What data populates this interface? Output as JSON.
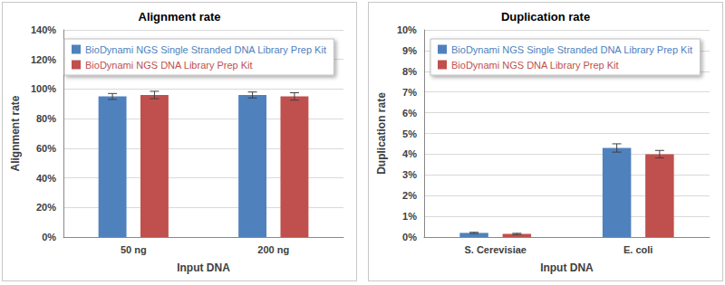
{
  "chart_data": [
    {
      "type": "bar",
      "title": "Alignment rate",
      "x_label": "Input DNA",
      "y_label": "Alignment rate",
      "categories": [
        "50 ng",
        "200 ng"
      ],
      "series": [
        {
          "name": "BioDynami NGS Single Stranded DNA Library Prep Kit",
          "color": "#4f81bd",
          "values": [
            95,
            96
          ],
          "errors": [
            2,
            2
          ]
        },
        {
          "name": "BioDynami NGS DNA Library Prep Kit",
          "color": "#c0504d",
          "values": [
            96,
            95
          ],
          "errors": [
            2.5,
            2.5
          ]
        }
      ],
      "ylim": [
        0,
        140
      ],
      "yticks": [
        {
          "value": 0,
          "label": "0%"
        },
        {
          "value": 20,
          "label": "20%"
        },
        {
          "value": 40,
          "label": "40%"
        },
        {
          "value": 60,
          "label": "60%"
        },
        {
          "value": 80,
          "label": "80%"
        },
        {
          "value": 100,
          "label": "100%"
        },
        {
          "value": 120,
          "label": "120%"
        },
        {
          "value": 140,
          "label": "140%"
        }
      ],
      "grid": true,
      "legend": "upper left"
    },
    {
      "type": "bar",
      "title": "Duplication rate",
      "x_label": "Input DNA",
      "y_label": "Duplication rate",
      "categories": [
        "S. Cerevisiae",
        "E. coli"
      ],
      "series": [
        {
          "name": "BioDynami NGS Single Stranded DNA Library Prep Kit",
          "color": "#4f81bd",
          "values": [
            0.2,
            4.3
          ],
          "errors": [
            0.03,
            0.2
          ]
        },
        {
          "name": "BioDynami NGS DNA Library Prep Kit",
          "color": "#c0504d",
          "values": [
            0.15,
            4.0
          ],
          "errors": [
            0.03,
            0.18
          ]
        }
      ],
      "ylim": [
        0,
        10
      ],
      "yticks": [
        {
          "value": 0,
          "label": "0%"
        },
        {
          "value": 1,
          "label": "1%"
        },
        {
          "value": 2,
          "label": "2%"
        },
        {
          "value": 3,
          "label": "3%"
        },
        {
          "value": 4,
          "label": "4%"
        },
        {
          "value": 5,
          "label": "5%"
        },
        {
          "value": 6,
          "label": "6%"
        },
        {
          "value": 7,
          "label": "7%"
        },
        {
          "value": 8,
          "label": "8%"
        },
        {
          "value": 9,
          "label": "9%"
        },
        {
          "value": 10,
          "label": "10%"
        }
      ],
      "grid": true,
      "legend": "upper left"
    }
  ]
}
